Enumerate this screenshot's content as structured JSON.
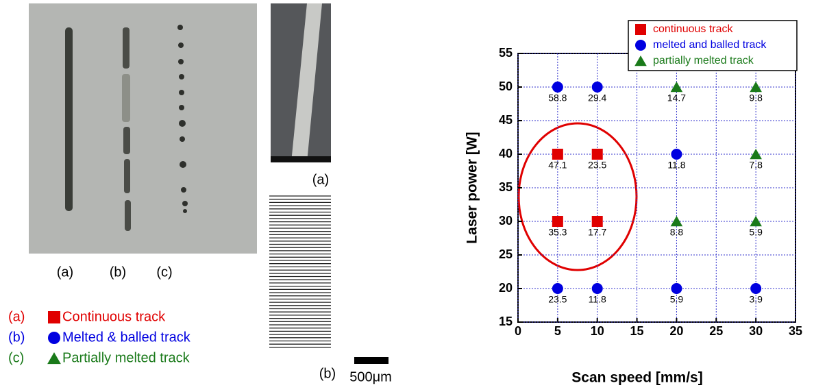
{
  "photo_labels": [
    "(a)",
    "(b)",
    "(c)"
  ],
  "track_legend": [
    {
      "key": "(a)",
      "text": "Continuous track",
      "color": "#e00000",
      "marker": "square"
    },
    {
      "key": "(b)",
      "text": "Melted & balled track",
      "color": "#0000e0",
      "marker": "circle"
    },
    {
      "key": "(c)",
      "text": "Partially melted track",
      "color": "#1a7a1a",
      "marker": "triangle"
    }
  ],
  "sem_label": "(a)",
  "lines_label": "(b)",
  "scale_bar": "500μm",
  "chart_data": {
    "type": "scatter",
    "xlabel": "Scan speed [mm/s]",
    "ylabel": "Laser power [W]",
    "xlim": [
      0,
      35
    ],
    "ylim": [
      15,
      55
    ],
    "xticks": [
      0,
      5,
      10,
      15,
      20,
      25,
      30,
      35
    ],
    "yticks": [
      15,
      20,
      25,
      30,
      35,
      40,
      45,
      50,
      55
    ],
    "grid": true,
    "legend": "top-right",
    "series": [
      {
        "name": "continuous track",
        "color": "#e00000",
        "marker": "square",
        "x": [
          5,
          10,
          5,
          10
        ],
        "values": [
          40,
          40,
          30,
          30
        ],
        "point_labels": [
          47.1,
          23.5,
          35.3,
          17.7
        ]
      },
      {
        "name": "melted and balled track",
        "color": "#0000e0",
        "marker": "circle",
        "x": [
          5,
          10,
          20,
          5,
          10,
          20,
          30
        ],
        "values": [
          50,
          50,
          40,
          20,
          20,
          20,
          20
        ],
        "point_labels": [
          58.8,
          29.4,
          11.8,
          23.5,
          11.8,
          5.9,
          3.9
        ]
      },
      {
        "name": "partially melted track",
        "color": "#1a7a1a",
        "marker": "triangle",
        "x": [
          20,
          30,
          30,
          20,
          30
        ],
        "values": [
          50,
          50,
          40,
          30,
          30
        ],
        "point_labels": [
          14.7,
          9.8,
          7.8,
          8.8,
          5.9
        ]
      }
    ]
  }
}
